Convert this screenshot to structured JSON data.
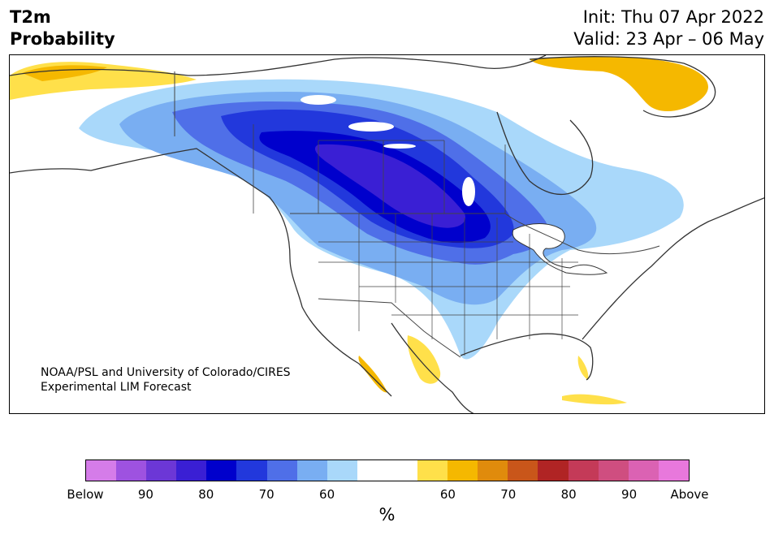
{
  "header": {
    "title_line1": "T2m",
    "title_line2": "Probability",
    "init": "Init: Thu 07 Apr 2022",
    "valid": "Valid: 23 Apr – 06 May"
  },
  "map": {
    "credit_line1": "NOAA/PSL and University of Colorado/CIRES",
    "credit_line2": "Experimental LIM Forecast"
  },
  "colorbar": {
    "colors": [
      "#d57ce9",
      "#9e52e0",
      "#6c37d6",
      "#3a1fd4",
      "#0000cc",
      "#2238dc",
      "#4f6fe8",
      "#79aef2",
      "#a9d8fa",
      "#ffffff",
      "#ffffff",
      "#ffe04a",
      "#f5b800",
      "#e08b0c",
      "#c9561a",
      "#b02424",
      "#c43a58",
      "#cf4e80",
      "#db62b3",
      "#e878dc"
    ],
    "labels": [
      {
        "text": "Below",
        "boundary": 0
      },
      {
        "text": "90",
        "boundary": 2
      },
      {
        "text": "80",
        "boundary": 4
      },
      {
        "text": "70",
        "boundary": 6
      },
      {
        "text": "60",
        "boundary": 8
      },
      {
        "text": "60",
        "boundary": 12
      },
      {
        "text": "70",
        "boundary": 14
      },
      {
        "text": "80",
        "boundary": 16
      },
      {
        "text": "90",
        "boundary": 18
      },
      {
        "text": "Above",
        "boundary": 20
      }
    ],
    "unit": "%"
  }
}
